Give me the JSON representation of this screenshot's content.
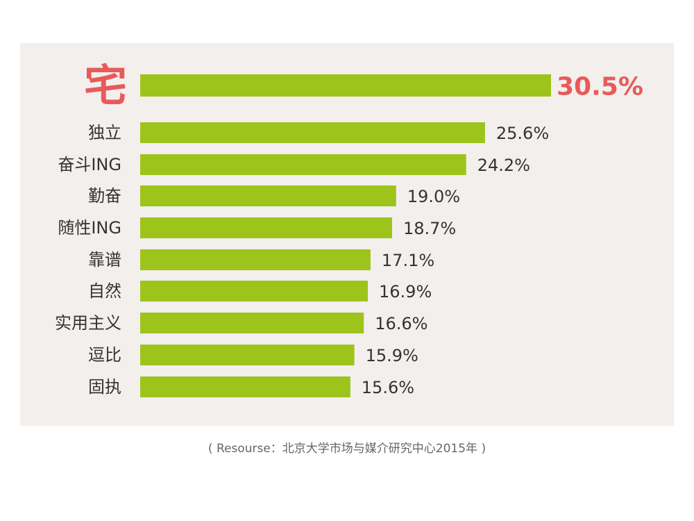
{
  "chart_data": {
    "type": "bar",
    "orientation": "horizontal",
    "categories": [
      "宅",
      "独立",
      "奋斗ING",
      "勤奋",
      "随性ING",
      "靠谱",
      "自然",
      "实用主义",
      "逗比",
      "固执"
    ],
    "values": [
      30.5,
      25.6,
      24.2,
      19.0,
      18.7,
      17.1,
      16.9,
      16.6,
      15.9,
      15.6
    ],
    "value_labels": [
      "30.5%",
      "25.6%",
      "24.2%",
      "19.0%",
      "18.7%",
      "17.1%",
      "16.9%",
      "16.6%",
      "15.9%",
      "15.6%"
    ],
    "highlight_index": 0,
    "colors": {
      "bar": "#9dc41a",
      "highlight_text": "#e85a5a",
      "panel_background": "#f3efed",
      "text": "#333333"
    }
  },
  "source_note": "( Resourse：北京大学市场与媒介研究中心2015年 )"
}
